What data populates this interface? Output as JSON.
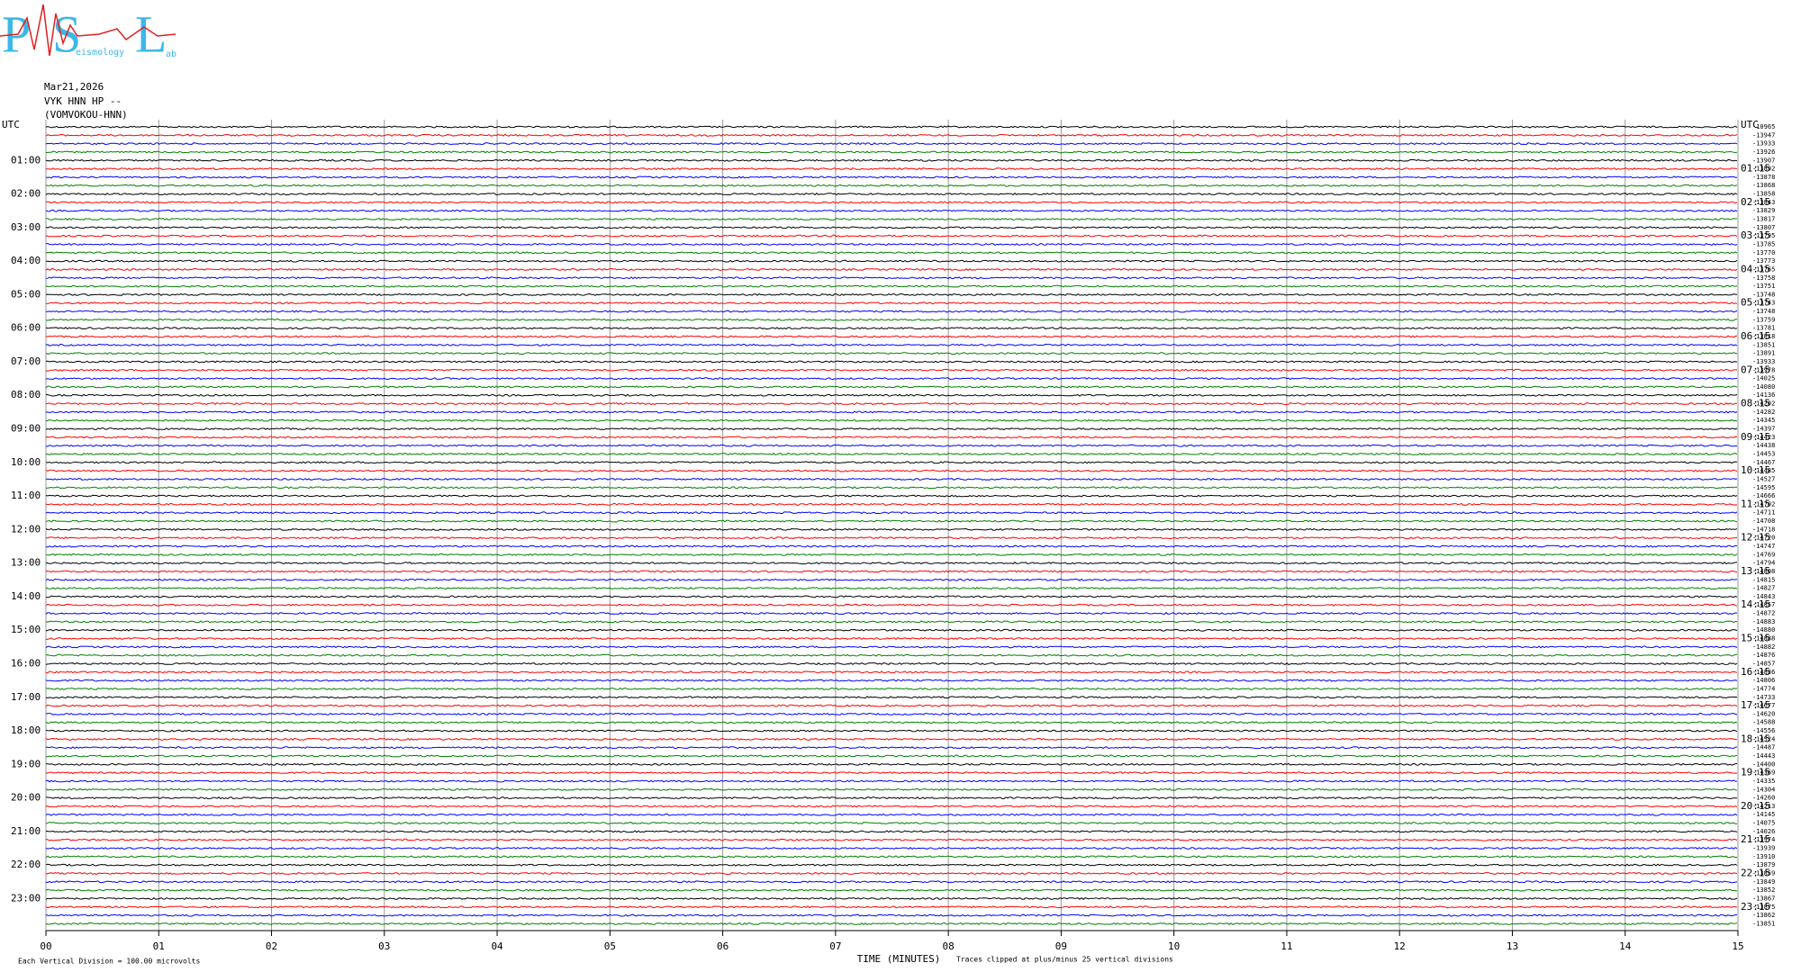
{
  "logo": {
    "p": "P",
    "s": "S",
    "l": "L",
    "mid": "eismology",
    "end": "ab"
  },
  "header": {
    "date": "Mar21,2026",
    "channel": "VYK HNN HP --",
    "station": "(VOMVOKOU-HNN)"
  },
  "left_labels": [
    "UTC",
    "01:00",
    "02:00",
    "03:00",
    "04:00",
    "05:00",
    "06:00",
    "07:00",
    "08:00",
    "09:00",
    "10:00",
    "11:00",
    "12:00",
    "13:00",
    "14:00",
    "15:00",
    "16:00",
    "17:00",
    "18:00",
    "19:00",
    "20:00",
    "21:00",
    "22:00",
    "23:00"
  ],
  "right_labels": [
    "UTC",
    "01:15",
    "02:15",
    "03:15",
    "04:15",
    "05:15",
    "06:15",
    "07:15",
    "08:15",
    "09:15",
    "10:15",
    "11:15",
    "12:15",
    "13:15",
    "14:15",
    "15:15",
    "16:15",
    "17:15",
    "18:15",
    "19:15",
    "20:15",
    "21:15",
    "22:15",
    "23:15"
  ],
  "trace_offsets": [
    -10965,
    -13947,
    -13933,
    -13926,
    -13907,
    -13892,
    -13878,
    -13868,
    -13858,
    -13843,
    -13829,
    -13817,
    -13807,
    -13795,
    -13785,
    -13770,
    -13773,
    -13765,
    -13758,
    -13751,
    -13748,
    -13743,
    -13748,
    -13759,
    -13781,
    -13818,
    -13851,
    -13891,
    -13933,
    -13978,
    -14025,
    -14080,
    -14136,
    -14202,
    -14282,
    -14345,
    -14397,
    -14423,
    -14438,
    -14453,
    -14467,
    -14485,
    -14527,
    -14595,
    -14666,
    -14702,
    -14711,
    -14708,
    -14718,
    -14720,
    -14747,
    -14769,
    -14794,
    -14808,
    -14815,
    -14827,
    -14843,
    -14857,
    -14872,
    -14883,
    -14880,
    -14888,
    -14882,
    -14876,
    -14857,
    -14836,
    -14806,
    -14774,
    -14733,
    -14677,
    -14620,
    -14588,
    -14556,
    -14524,
    -14487,
    -14443,
    -14400,
    -14369,
    -14335,
    -14304,
    -14260,
    -14213,
    -14145,
    -14075,
    -14026,
    -13974,
    -13939,
    -13910,
    -13879,
    -13859,
    -13849,
    -13852,
    -13867,
    -13875,
    -13862,
    -13851
  ],
  "x_axis": {
    "ticks": [
      "00",
      "01",
      "02",
      "03",
      "04",
      "05",
      "06",
      "07",
      "08",
      "09",
      "10",
      "11",
      "12",
      "13",
      "14",
      "15"
    ],
    "title": "TIME (MINUTES)"
  },
  "notes": {
    "scale": "Each Vertical Division =  100.00 microvolts",
    "clip": "Traces clipped at plus/minus 25 vertical divisions"
  }
}
